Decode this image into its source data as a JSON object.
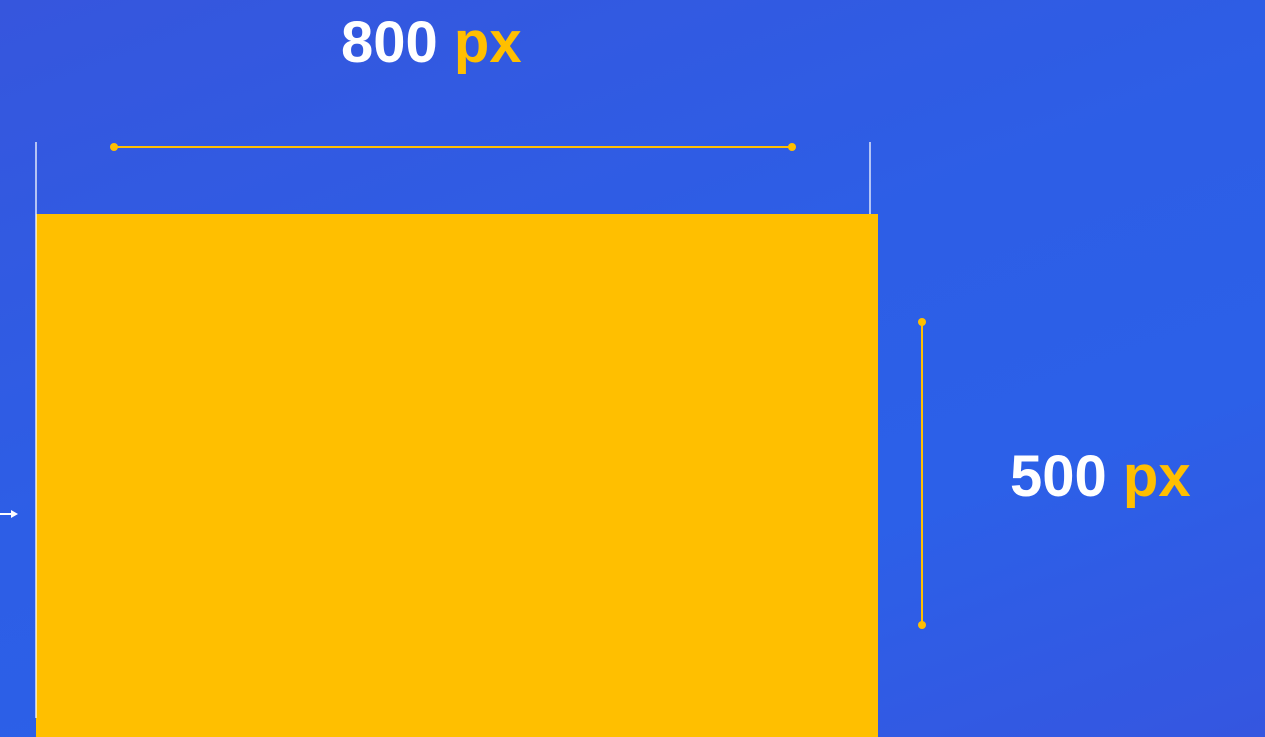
{
  "width_label": {
    "value": "800",
    "unit": "px"
  },
  "height_label": {
    "value": "500",
    "unit": "px"
  },
  "colors": {
    "background": "#2f5ae4",
    "rectangle": "#ffbf00",
    "accent": "#ffbf00",
    "text": "#ffffff",
    "guide": "#ffffff"
  },
  "icons": [
    "arrow-right-icon"
  ]
}
